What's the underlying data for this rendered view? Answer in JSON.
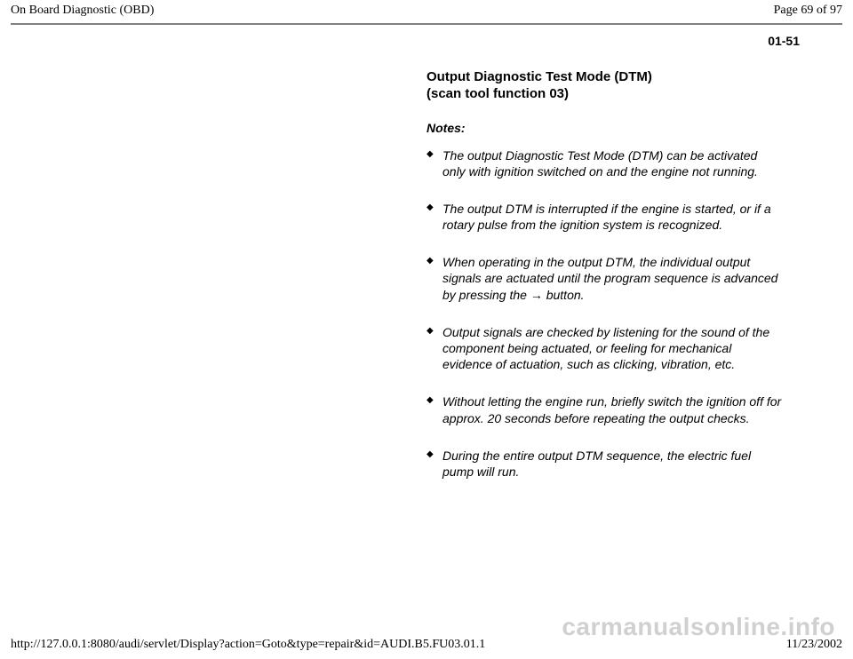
{
  "header": {
    "title": "On Board Diagnostic (OBD)",
    "page_label": "Page 69 of 97"
  },
  "page_number": "01-51",
  "content": {
    "section_title_line1": "Output Diagnostic Test Mode (DTM)",
    "section_title_line2": "(scan tool function 03)",
    "notes_label": "Notes:",
    "notes": [
      "The output Diagnostic Test Mode (DTM) can be activated only with ignition switched on and the engine not running.",
      "The output DTM is interrupted if the engine is started, or if a rotary pulse from the ignition system is recognized.",
      "When operating in the output DTM, the individual output signals are actuated until the program sequence is advanced by pressing the → button.",
      "Output signals are checked by listening for the sound of the component being actuated, or feeling for mechanical evidence of actuation, such as clicking, vibration, etc.",
      "Without letting the engine run, briefly switch the ignition off for approx. 20 seconds before repeating the output checks.",
      "During the entire output DTM sequence, the electric fuel pump will run."
    ]
  },
  "footer": {
    "url": "http://127.0.0.1:8080/audi/servlet/Display?action=Goto&type=repair&id=AUDI.B5.FU03.01.1",
    "date": "11/23/2002"
  },
  "watermark": "carmanualsonline.info"
}
